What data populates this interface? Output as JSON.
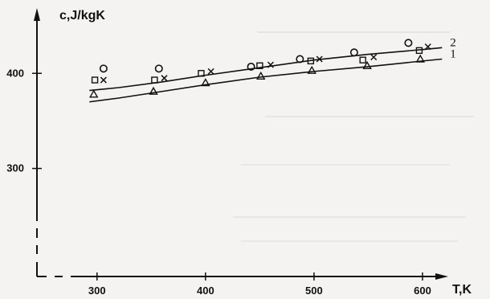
{
  "chart_data": {
    "type": "scatter",
    "ylabel": "c,J/kgK",
    "xlabel": "T,K",
    "xlim": [
      255,
      640
    ],
    "ylim": [
      205,
      445
    ],
    "x_ticks": [
      300,
      400,
      500,
      600
    ],
    "x_tick_labels": [
      "300",
      "400",
      "500",
      "600"
    ],
    "y_ticks": [
      300,
      400
    ],
    "y_tick_labels": [
      "300",
      "400"
    ],
    "grid": false,
    "series": [
      {
        "marker": "circle",
        "points": [
          [
            306,
            405
          ],
          [
            357,
            405
          ],
          [
            442,
            407
          ],
          [
            487,
            415
          ],
          [
            537,
            422
          ],
          [
            587,
            432
          ]
        ]
      },
      {
        "marker": "square",
        "points": [
          [
            298,
            393
          ],
          [
            353,
            393
          ],
          [
            396,
            400
          ],
          [
            450,
            408
          ],
          [
            497,
            413
          ],
          [
            545,
            414
          ],
          [
            597,
            424
          ]
        ]
      },
      {
        "marker": "cross",
        "points": [
          [
            306,
            393
          ],
          [
            362,
            395
          ],
          [
            405,
            402
          ],
          [
            460,
            409
          ],
          [
            505,
            415
          ],
          [
            555,
            417
          ],
          [
            605,
            428
          ]
        ]
      },
      {
        "marker": "triangle",
        "points": [
          [
            297,
            378
          ],
          [
            352,
            381
          ],
          [
            400,
            390
          ],
          [
            451,
            397
          ],
          [
            498,
            403
          ],
          [
            549,
            408
          ],
          [
            598,
            415
          ]
        ]
      }
    ],
    "curves": [
      {
        "label": "1",
        "points": [
          [
            293,
            370
          ],
          [
            320,
            374
          ],
          [
            360,
            381
          ],
          [
            400,
            388
          ],
          [
            450,
            396
          ],
          [
            500,
            402
          ],
          [
            550,
            407
          ],
          [
            600,
            413
          ],
          [
            618,
            415
          ]
        ]
      },
      {
        "label": "2",
        "points": [
          [
            293,
            382
          ],
          [
            320,
            385
          ],
          [
            360,
            391
          ],
          [
            400,
            398
          ],
          [
            450,
            406
          ],
          [
            500,
            414
          ],
          [
            550,
            420
          ],
          [
            600,
            425
          ],
          [
            618,
            427
          ]
        ]
      }
    ]
  }
}
